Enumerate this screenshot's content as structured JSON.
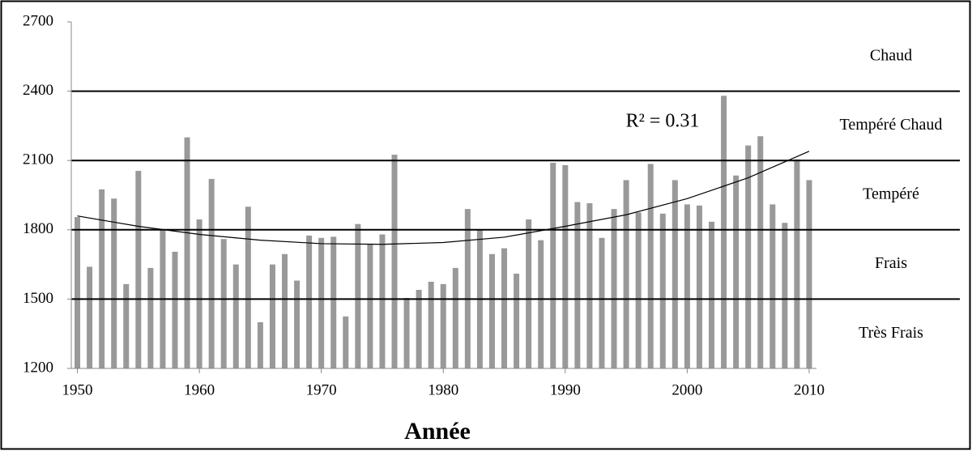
{
  "chart_data": {
    "type": "bar",
    "x_label": "Année",
    "annotation": "R² = 0.31",
    "x": [
      1950,
      1951,
      1952,
      1953,
      1954,
      1955,
      1956,
      1957,
      1958,
      1959,
      1960,
      1961,
      1962,
      1963,
      1964,
      1965,
      1966,
      1967,
      1968,
      1969,
      1970,
      1971,
      1972,
      1973,
      1974,
      1975,
      1976,
      1977,
      1978,
      1979,
      1980,
      1981,
      1982,
      1983,
      1984,
      1985,
      1986,
      1987,
      1988,
      1989,
      1990,
      1991,
      1992,
      1993,
      1994,
      1995,
      1996,
      1997,
      1998,
      1999,
      2000,
      2001,
      2002,
      2003,
      2004,
      2005,
      2006,
      2007,
      2008,
      2009,
      2010
    ],
    "values": [
      1855,
      1640,
      1975,
      1935,
      1565,
      2055,
      1635,
      1800,
      1705,
      2200,
      1845,
      2020,
      1760,
      1650,
      1900,
      1400,
      1650,
      1695,
      1580,
      1775,
      1765,
      1770,
      1425,
      1825,
      1740,
      1780,
      2125,
      1505,
      1540,
      1575,
      1565,
      1635,
      1890,
      1800,
      1695,
      1720,
      1610,
      1845,
      1755,
      2090,
      2080,
      1920,
      1915,
      1765,
      1890,
      2015,
      1875,
      2085,
      1870,
      2015,
      1910,
      1905,
      1835,
      2380,
      2035,
      2165,
      2205,
      1910,
      1830,
      2105,
      2015
    ],
    "color": "#999999",
    "trend": {
      "x": [
        1950,
        1955,
        1960,
        1965,
        1970,
        1975,
        1980,
        1985,
        1990,
        1995,
        2000,
        2005,
        2010
      ],
      "values": [
        1860,
        1815,
        1780,
        1755,
        1740,
        1737,
        1745,
        1768,
        1815,
        1865,
        1935,
        2025,
        2140
      ],
      "color": "#000000"
    },
    "bands": [
      {
        "label": "Très Frais",
        "from": 1200,
        "to": 1500
      },
      {
        "label": "Frais",
        "from": 1500,
        "to": 1800
      },
      {
        "label": "Tempéré",
        "from": 1800,
        "to": 2100
      },
      {
        "label": "Tempéré Chaud",
        "from": 2100,
        "to": 2400
      },
      {
        "label": "Chaud",
        "from": 2400,
        "to": 2700
      }
    ],
    "xlim": [
      1949.5,
      2010.6
    ],
    "xticks": [
      1950,
      1960,
      1970,
      1980,
      1990,
      2000,
      2010
    ],
    "ylim": [
      1200,
      2700
    ],
    "yticks": [
      1200,
      1500,
      1800,
      2100,
      2400,
      2700
    ],
    "grid": true
  }
}
